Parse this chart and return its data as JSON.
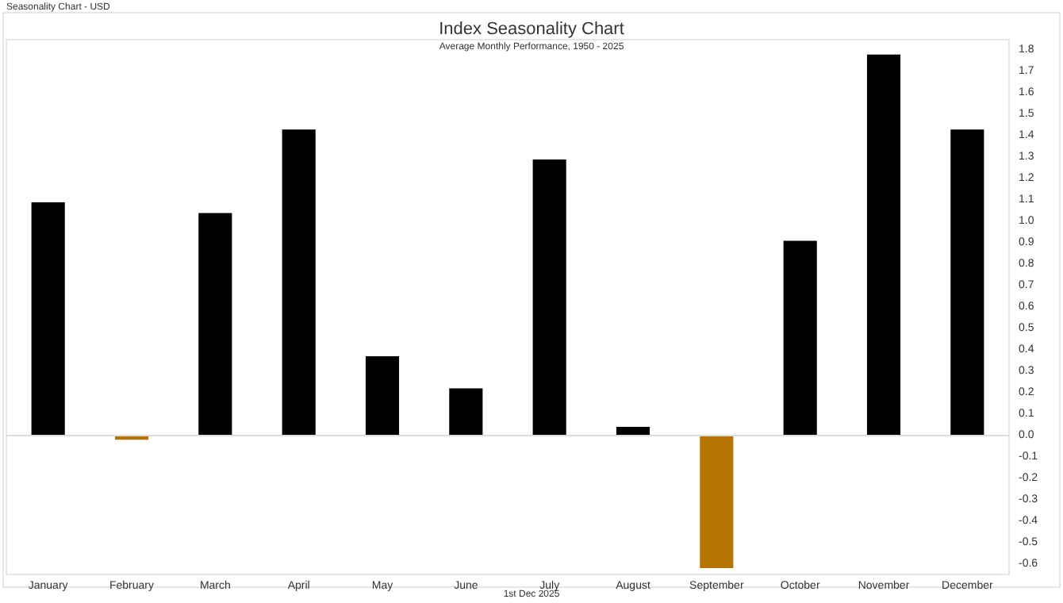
{
  "chart_data": {
    "type": "bar",
    "title": "Index Seasonality Chart",
    "subtitle": "Average Monthly Performance, 1950 - 2025",
    "annotations": [
      "Seasonality Chart - USD",
      "1st Dec 2025"
    ],
    "categories": [
      "January",
      "February",
      "March",
      "April",
      "May",
      "June",
      "July",
      "August",
      "September",
      "October",
      "November",
      "December"
    ],
    "values": [
      1.09,
      -0.02,
      1.04,
      1.43,
      0.37,
      0.22,
      1.29,
      0.04,
      -0.62,
      0.91,
      1.78,
      1.43
    ],
    "colors": [
      "#000000",
      "#b57400",
      "#000000",
      "#000000",
      "#000000",
      "#000000",
      "#000000",
      "#000000",
      "#b57400",
      "#000000",
      "#000000",
      "#000000"
    ],
    "ylim": [
      -0.65,
      1.85
    ],
    "yticks": [
      -0.6,
      -0.5,
      -0.4,
      -0.3,
      -0.2,
      -0.1,
      {
        "value": 0,
        "label": "0.0"
      },
      0.1,
      0.2,
      0.3,
      0.4,
      0.5,
      0.6,
      0.7,
      0.8,
      0.9,
      {
        "value": 1,
        "label": "1.0"
      },
      1.1,
      1.2,
      1.3,
      1.4,
      1.5,
      1.6,
      1.7,
      1.8
    ],
    "ref_lines": [
      {
        "axis": "y",
        "value": 0,
        "color": "#dddddd"
      }
    ]
  }
}
